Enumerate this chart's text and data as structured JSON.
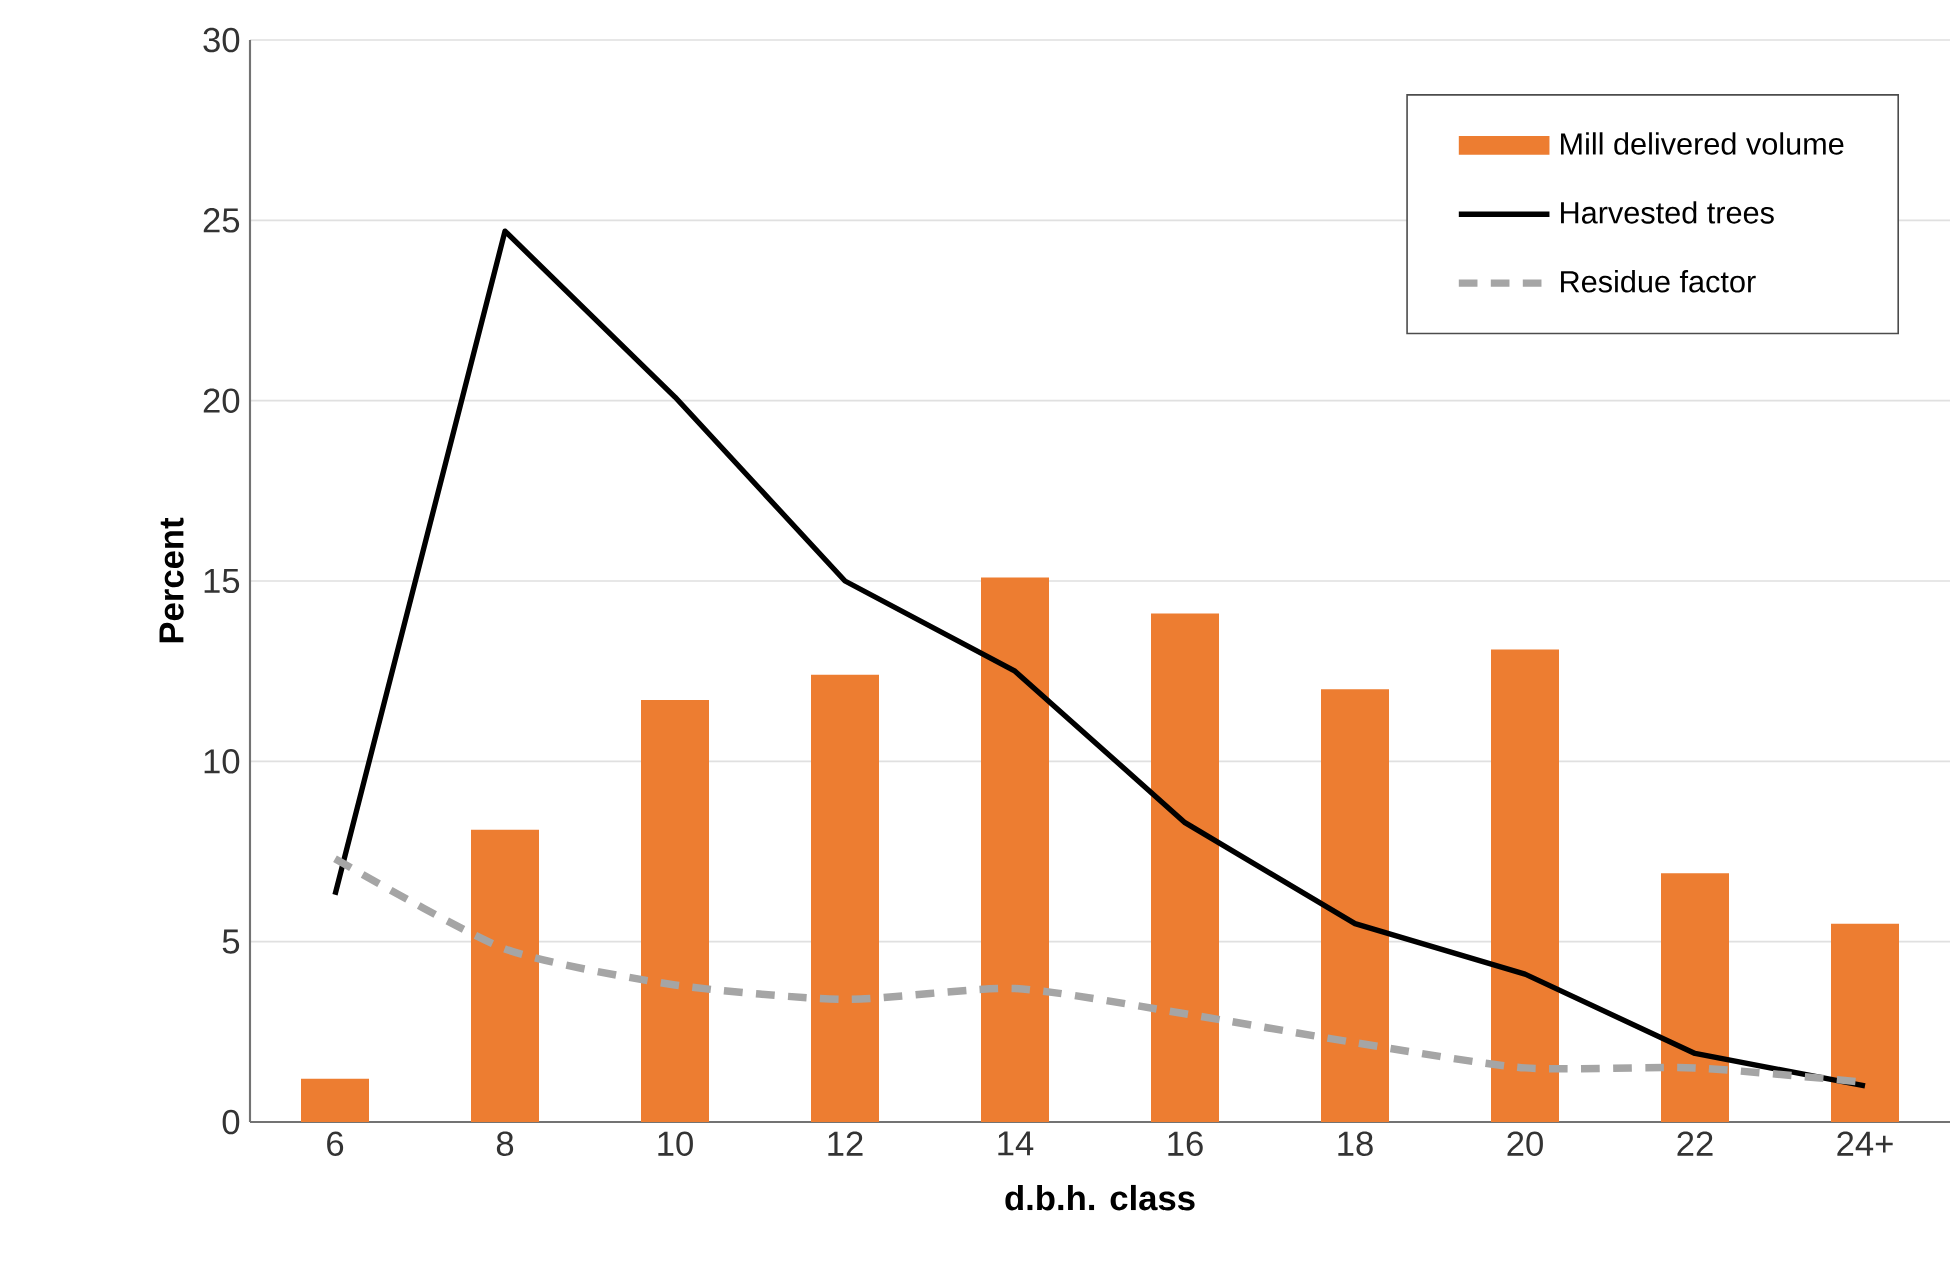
{
  "chart_data": {
    "type": "bar",
    "xlabel": "d.b.h. class",
    "ylabel": "Percent",
    "categories": [
      "6",
      "8",
      "10",
      "12",
      "14",
      "16",
      "18",
      "20",
      "22",
      "24+"
    ],
    "ylim": [
      0,
      30
    ],
    "yticks": [
      0,
      5,
      10,
      15,
      20,
      25,
      30
    ],
    "grid": "y",
    "legend": "top right",
    "series": [
      {
        "name": "Mill delivered volume",
        "color": "#ed7d31",
        "values": [
          1.2,
          8.1,
          11.7,
          12.4,
          15.1,
          14.1,
          12.0,
          13.1,
          6.9,
          5.5
        ]
      },
      {
        "name": "Harvested trees",
        "type": "line",
        "color": "#000000",
        "line_style": "solid",
        "values": [
          6.3,
          24.7,
          20.1,
          15.0,
          12.5,
          8.3,
          5.5,
          4.1,
          1.9,
          1.0
        ]
      },
      {
        "name": "Residue factor",
        "type": "line",
        "color": "#a5a5a5",
        "line_style": "dashed",
        "values": [
          7.3,
          4.8,
          3.8,
          3.4,
          3.7,
          3.0,
          2.2,
          1.5,
          1.5,
          1.1
        ]
      }
    ]
  }
}
